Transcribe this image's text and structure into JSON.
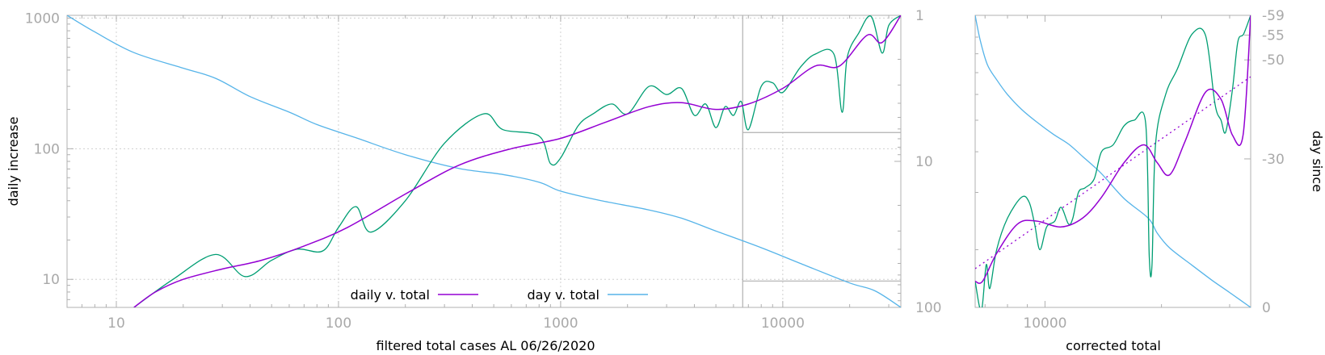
{
  "colors": {
    "daily": "#9400d3",
    "raw": "#009e73",
    "day": "#56b4e9",
    "axis": "#a9a9a9",
    "grid": "#d0d0d0",
    "frame": "#b0b0b0"
  },
  "chart_data": [
    {
      "type": "line",
      "name": "main-plot",
      "title": "",
      "xlabel": "filtered total cases AL 06/26/2020",
      "ylabel": "daily increase",
      "y2label": "",
      "xscale": "log",
      "yscale": "log",
      "y2scale": "log",
      "y2reversed": true,
      "xlim": [
        6,
        34000
      ],
      "ylim": [
        6.1,
        1050
      ],
      "y2lim": [
        1,
        100
      ],
      "grid": true,
      "x_ticks": [
        {
          "value": 10,
          "label": "10"
        },
        {
          "value": 100,
          "label": "100"
        },
        {
          "value": 1000,
          "label": "1000"
        },
        {
          "value": 10000,
          "label": "10000"
        }
      ],
      "y_ticks": [
        {
          "value": 10,
          "label": "10"
        },
        {
          "value": 100,
          "label": "100"
        },
        {
          "value": 1000,
          "label": "1000"
        }
      ],
      "y2_ticks": [
        {
          "value": 1,
          "label": "1"
        },
        {
          "value": 10,
          "label": "10"
        },
        {
          "value": 100,
          "label": "100"
        }
      ],
      "legend": [
        "daily v. total",
        "day v. total"
      ],
      "legend_position": "bottom-center",
      "inset_box": {
        "x_from": 6600,
        "y_from": 133,
        "y2_from": 66
      },
      "series": [
        {
          "name": "daily v. total",
          "role": "daily",
          "axis": "y",
          "x": [
            12,
            15,
            20,
            30,
            45,
            70,
            110,
            200,
            350,
            600,
            1000,
            1600,
            2500,
            3500,
            5000,
            7000,
            10000,
            14000,
            18000,
            24000,
            28000,
            34000
          ],
          "y": [
            6.1,
            8,
            10,
            12,
            14,
            18,
            25,
            45,
            75,
            100,
            120,
            160,
            210,
            225,
            200,
            220,
            290,
            430,
            430,
            740,
            650,
            1050
          ]
        },
        {
          "name": "raw daily",
          "role": "raw",
          "axis": "y",
          "x": [
            12,
            18,
            28,
            38,
            50,
            65,
            85,
            100,
            120,
            140,
            200,
            300,
            450,
            550,
            800,
            900,
            1000,
            1200,
            1400,
            1700,
            2000,
            2500,
            3000,
            3500,
            4000,
            4500,
            5000,
            5500,
            6000,
            6500,
            7000,
            8000,
            9000,
            10000,
            12000,
            14000,
            17000,
            18500,
            19500,
            22000,
            25000,
            28000,
            30000,
            34000
          ],
          "y": [
            6.1,
            10,
            15.5,
            10.5,
            14,
            17,
            16.5,
            25,
            36,
            23,
            40,
            110,
            185,
            140,
            125,
            77,
            85,
            150,
            185,
            220,
            185,
            300,
            260,
            290,
            180,
            220,
            145,
            210,
            180,
            230,
            140,
            300,
            320,
            270,
            420,
            530,
            530,
            190,
            500,
            770,
            1030,
            540,
            880,
            1050
          ]
        },
        {
          "name": "day v. total",
          "role": "day",
          "axis": "y2",
          "x": [
            6,
            8,
            12,
            20,
            28,
            40,
            60,
            80,
            120,
            200,
            350,
            550,
            800,
            1000,
            1500,
            2500,
            3500,
            5000,
            8000,
            12000,
            20000,
            26000,
            34000
          ],
          "y2": [
            1,
            1.3,
            1.8,
            2.3,
            2.7,
            3.6,
            4.6,
            5.6,
            6.9,
            9,
            11.2,
            12.3,
            13.9,
            16,
            18.5,
            21.5,
            24.5,
            30,
            39,
            50,
            68,
            77,
            100
          ]
        }
      ]
    },
    {
      "type": "line",
      "name": "inset-plot",
      "title": "",
      "xlabel": "corrected total",
      "ylabel": "",
      "y2label": "day since",
      "xscale": "log",
      "yscale": "log",
      "y2scale": "linear",
      "y2reversed": true,
      "xlim": [
        6600,
        34000
      ],
      "ylim": [
        133,
        1050
      ],
      "y2lim": [
        -59,
        0
      ],
      "grid": false,
      "x_ticks": [
        {
          "value": 10000,
          "label": "10000"
        }
      ],
      "y2_ticks": [
        {
          "value": -59,
          "label": "-59"
        },
        {
          "value": -55,
          "label": "-55"
        },
        {
          "value": -50,
          "label": "-50"
        },
        {
          "value": -30,
          "label": "-30"
        },
        {
          "value": 0,
          "label": "0"
        }
      ],
      "series": [
        {
          "name": "daily v. total",
          "role": "daily",
          "axis": "y",
          "x": [
            6600,
            6900,
            7500,
            8500,
            9500,
            11000,
            12500,
            14000,
            16000,
            18000,
            19500,
            21000,
            23000,
            26000,
            28500,
            30500,
            32500,
            34000
          ],
          "y": [
            160,
            160,
            195,
            240,
            245,
            235,
            250,
            290,
            370,
            420,
            370,
            340,
            430,
            610,
            580,
            450,
            450,
            1050
          ]
        },
        {
          "name": "raw daily",
          "role": "raw",
          "axis": "y",
          "x": [
            6600,
            6850,
            7050,
            7200,
            7500,
            8000,
            8700,
            9100,
            9400,
            9700,
            10100,
            10600,
            11000,
            11500,
            11800,
            12200,
            12700,
            13400,
            14000,
            15000,
            16000,
            17000,
            18200,
            18600,
            18900,
            19300,
            20500,
            22000,
            24000,
            26000,
            27500,
            28500,
            29300,
            30500,
            31500,
            32600,
            34000
          ],
          "y": [
            160,
            130,
            180,
            152,
            200,
            250,
            290,
            280,
            240,
            200,
            235,
            245,
            270,
            240,
            250,
            300,
            310,
            330,
            400,
            420,
            480,
            500,
            490,
            190,
            180,
            420,
            600,
            720,
            920,
            910,
            560,
            500,
            460,
            620,
            870,
            920,
            1050
          ]
        },
        {
          "name": "trend fit",
          "role": "fit",
          "axis": "y",
          "x": [
            6600,
            34000
          ],
          "y": [
            175,
            680
          ]
        },
        {
          "name": "day since",
          "role": "day",
          "axis": "y2",
          "x": [
            6600,
            6800,
            7100,
            7500,
            8000,
            8700,
            9500,
            10500,
            11500,
            12500,
            14000,
            16000,
            18500,
            19500,
            21000,
            24000,
            27000,
            30000,
            34000
          ],
          "y2": [
            -59,
            -54,
            -49,
            -46,
            -43,
            -40,
            -37.5,
            -35,
            -33,
            -30.5,
            -27,
            -22,
            -18,
            -15,
            -12,
            -8.5,
            -5.5,
            -3,
            0
          ]
        }
      ]
    }
  ]
}
